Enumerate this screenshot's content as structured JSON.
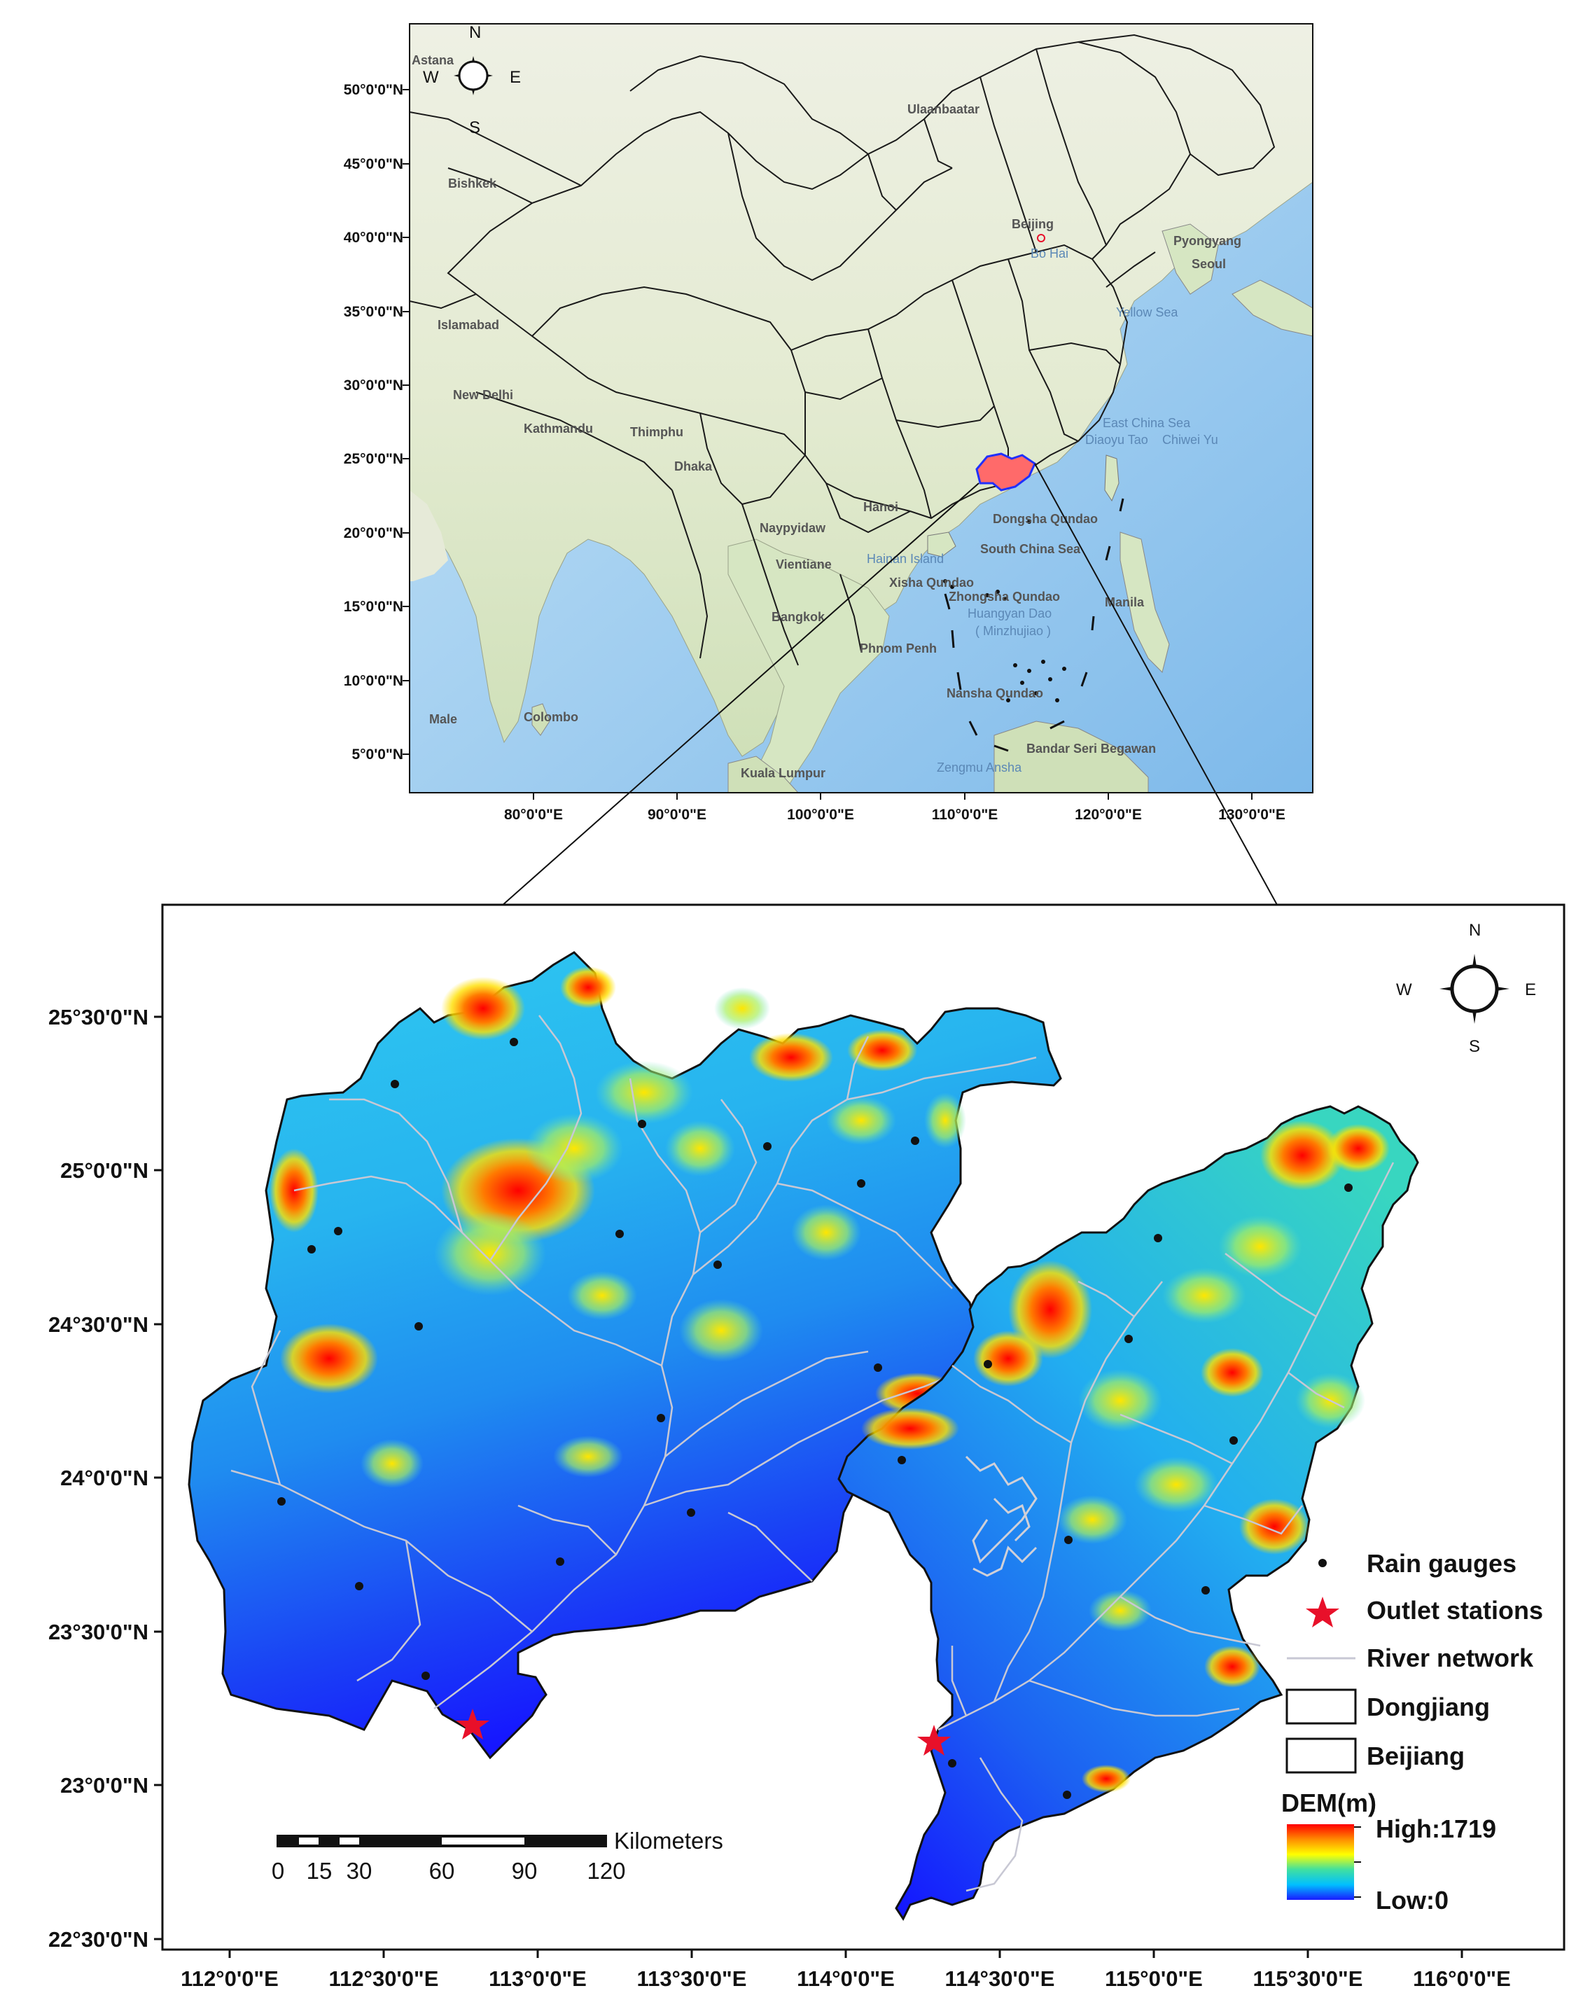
{
  "overview_map": {
    "lat_labels": [
      "50°0'0\"N",
      "45°0'0\"N",
      "40°0'0\"N",
      "35°0'0\"N",
      "30°0'0\"N",
      "25°0'0\"N",
      "20°0'0\"N",
      "15°0'0\"N",
      "10°0'0\"N",
      "5°0'0\"N"
    ],
    "lon_labels": [
      "80°0'0\"E",
      "90°0'0\"E",
      "100°0'0\"E",
      "110°0'0\"E",
      "120°0'0\"E",
      "130°0'0\"E"
    ],
    "places": {
      "astana": "Astana",
      "ulaanbaatar": "Ulaanbaatar",
      "bishkek": "Bishkek",
      "beijing": "Beijing",
      "pyongyang": "Pyongyang",
      "seoul": "Seoul",
      "bohai": "Bo Hai",
      "islamabad": "Islamabad",
      "newdelhi": "New Delhi",
      "kathmandu": "Kathmandu",
      "thimphu": "Thimphu",
      "dhaka": "Dhaka",
      "naypyidaw": "Naypyidaw",
      "hanoi": "Hanoi",
      "vientiane": "Vientiane",
      "bangkok": "Bangkok",
      "phnompenh": "Phnom Penh",
      "manila": "Manila",
      "colombo": "Colombo",
      "male": "Male",
      "kualalumpur": "Kuala Lumpur",
      "bandar": "Bandar Seri Begawan",
      "dongsha": "Dongsha Qundao",
      "xisha": "Xisha Qundao",
      "zhongsha": "Zhongsha Qundao",
      "huangyan": "Huangyan Dao",
      "minzhujiao": "( Minzhujiao )",
      "nansha": "Nansha Qundao",
      "zengmu": "Zengmu Ansha",
      "hainan": "Hainan Island",
      "diaoyu": "Diaoyu Tao",
      "chiwei": "Chiwei Yu",
      "yellowsea": "Yellow Sea",
      "eastchina": "East China Sea",
      "southchina": "South China Sea"
    },
    "compass": {
      "n": "N",
      "s": "S",
      "e": "E",
      "w": "W"
    }
  },
  "detail_map": {
    "lat_labels": [
      "25°30'0\"N",
      "25°0'0\"N",
      "24°30'0\"N",
      "24°0'0\"N",
      "23°30'0\"N",
      "23°0'0\"N",
      "22°30'0\"N"
    ],
    "lon_labels": [
      "112°0'0\"E",
      "112°30'0\"E",
      "113°0'0\"E",
      "113°30'0\"E",
      "114°0'0\"E",
      "114°30'0\"E",
      "115°0'0\"E",
      "115°30'0\"E",
      "116°0'0\"E"
    ],
    "compass": {
      "n": "N",
      "s": "S",
      "e": "E",
      "w": "W"
    },
    "scale_bar": {
      "unit": "Kilometers",
      "labels": [
        "0",
        "15",
        "30",
        "60",
        "90",
        "120"
      ]
    }
  },
  "legend": {
    "rain_gauges": "Rain gauges",
    "outlet_stations": "Outlet stations",
    "river_network": "River network",
    "dongjiang": "Dongjiang",
    "beijiang": "Beijiang",
    "dem_title": "DEM(m)",
    "dem_high": "High:1719",
    "dem_low": "Low:0"
  },
  "colors": {
    "ocean": "#a9d3f0",
    "land": "#e8eedc",
    "dem_low": "#1a1aff",
    "dem_high": "#ff0000",
    "outlet": "#e8102a"
  }
}
